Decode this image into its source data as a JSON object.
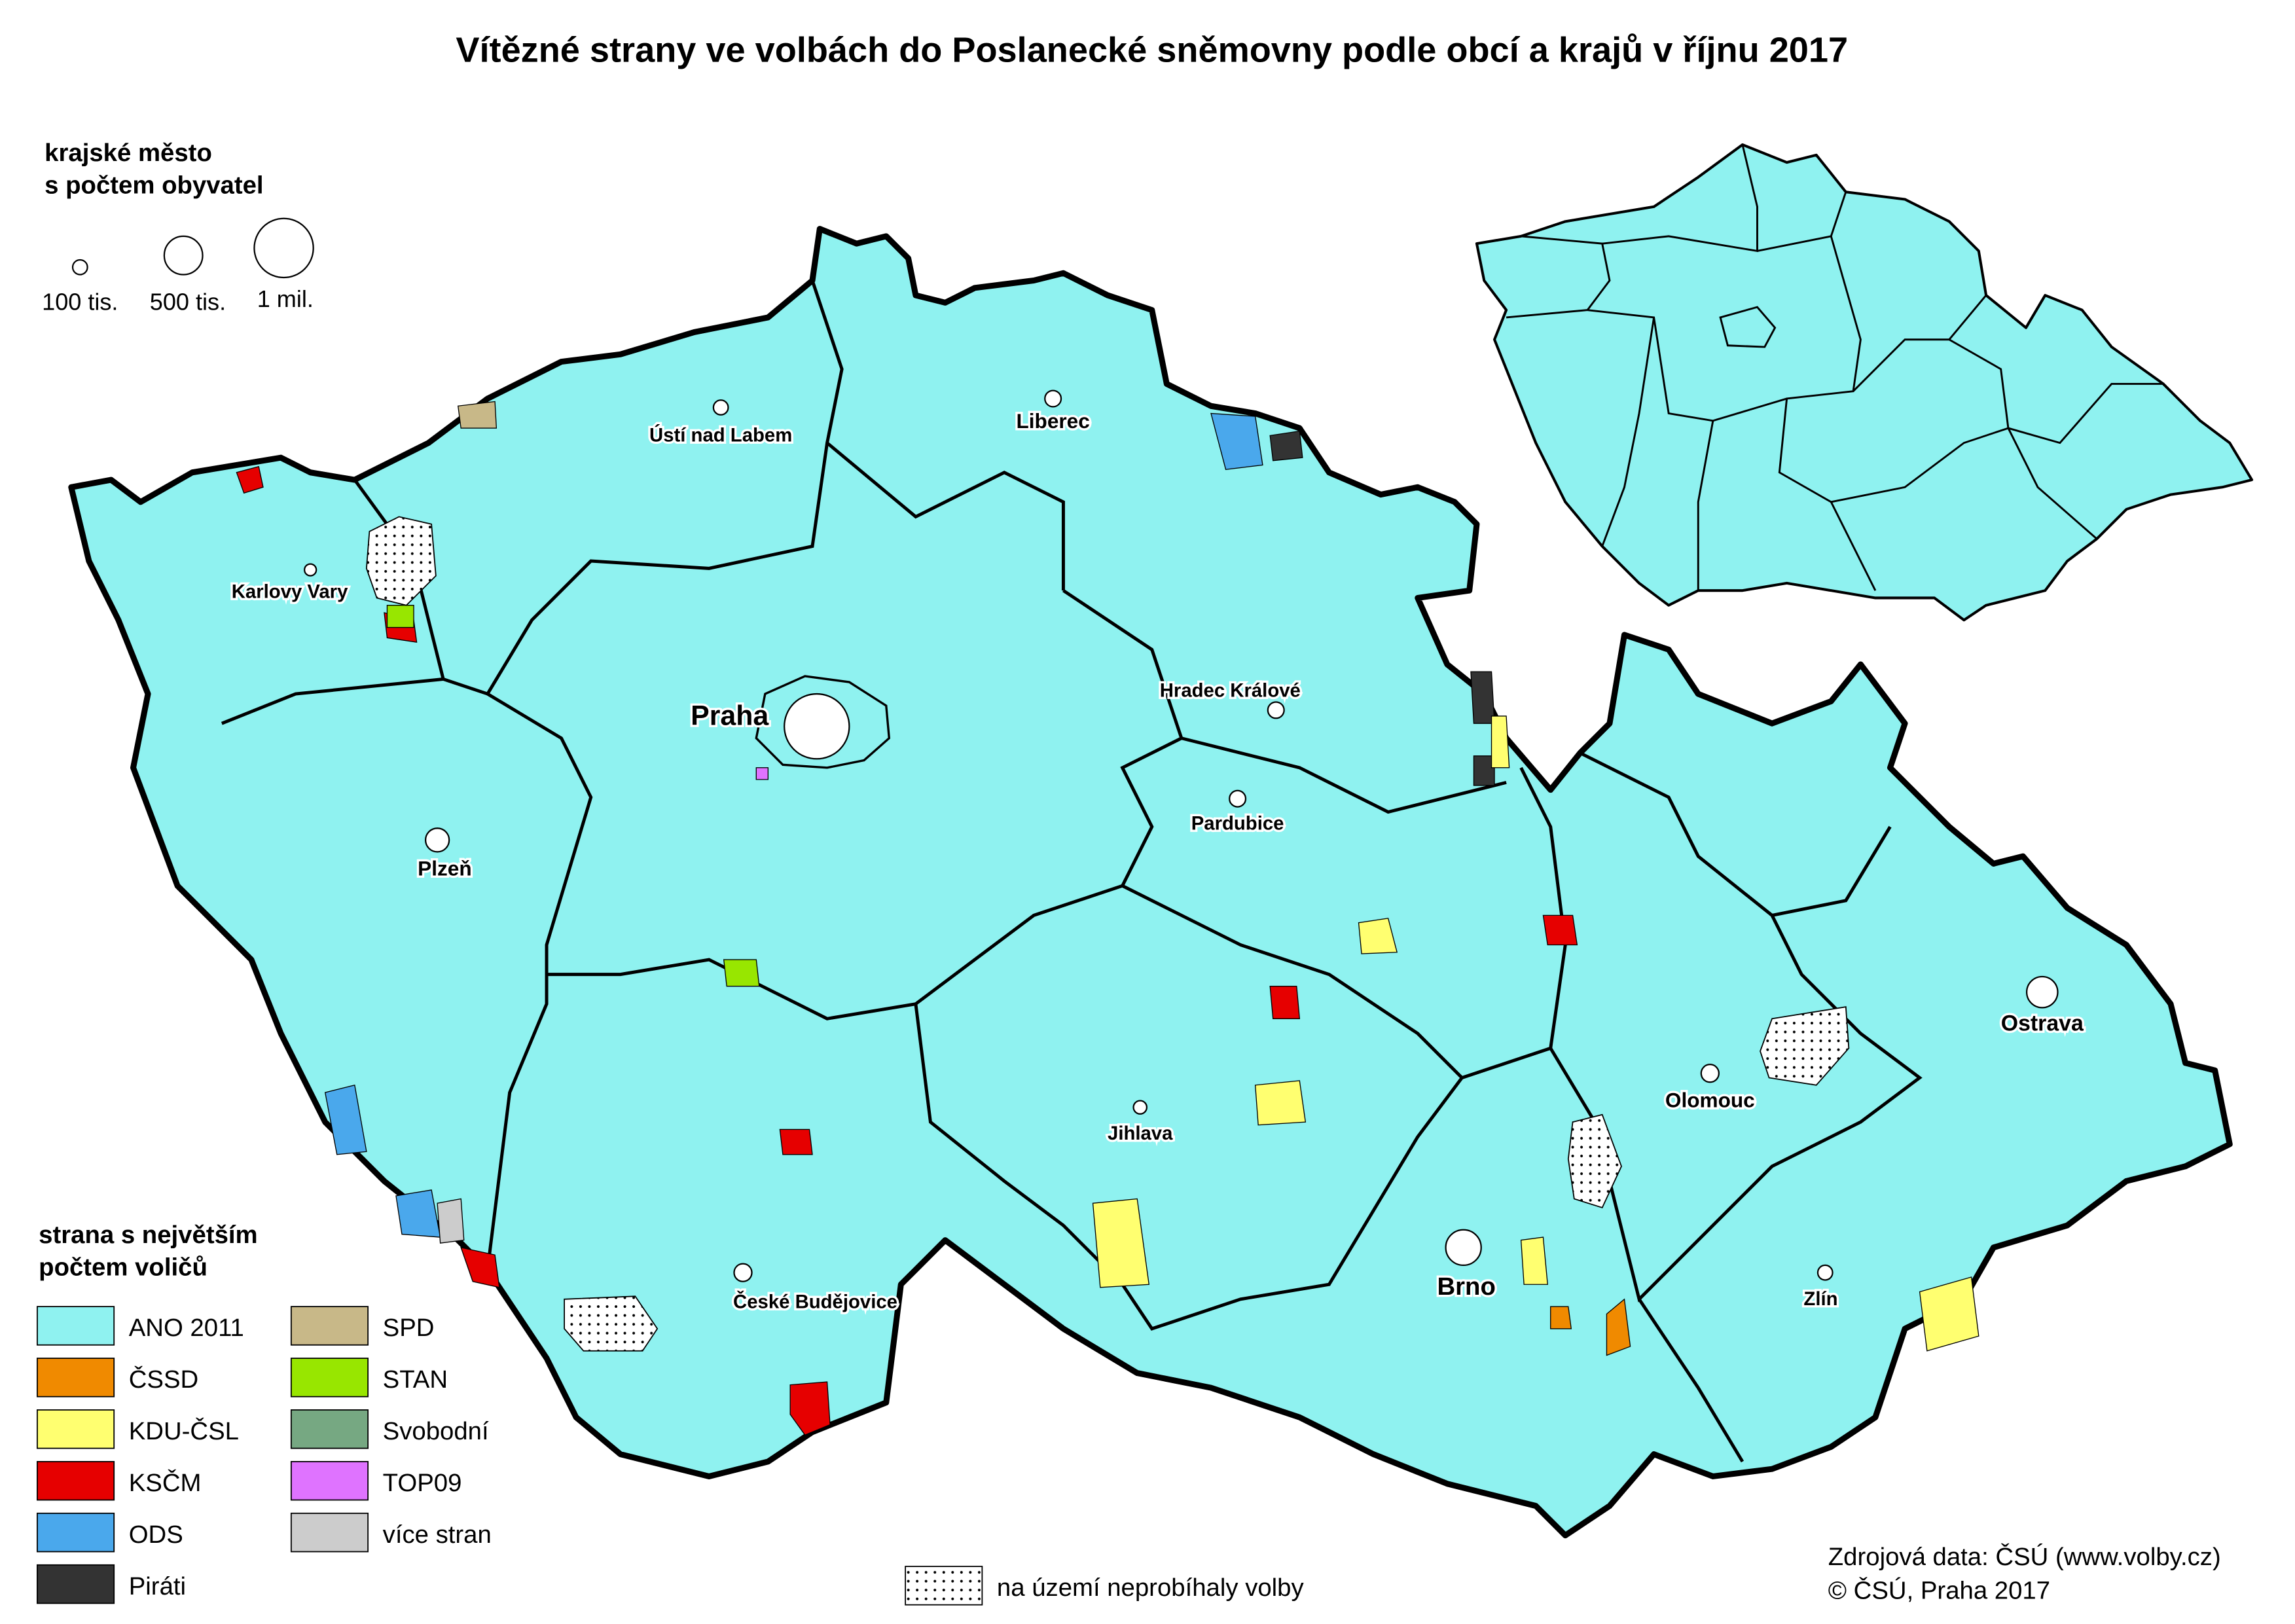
{
  "title": "Vítězné strany ve volbách do Poslanecké sněmovny podle obcí a krajů v říjnu 2017",
  "city_size_legend": {
    "title_line1": "krajské město",
    "title_line2": "s počtem obyvatel",
    "sizes": [
      {
        "label": "100 tis.",
        "population": 100000
      },
      {
        "label": "500 tis.",
        "population": 500000
      },
      {
        "label": "1 mil.",
        "population": 1000000
      }
    ]
  },
  "cities": [
    {
      "name": "Praha"
    },
    {
      "name": "Ústí nad Labem"
    },
    {
      "name": "Liberec"
    },
    {
      "name": "Karlovy Vary"
    },
    {
      "name": "Hradec Králové"
    },
    {
      "name": "Pardubice"
    },
    {
      "name": "Plzeň"
    },
    {
      "name": "Jihlava"
    },
    {
      "name": "Brno"
    },
    {
      "name": "Olomouc"
    },
    {
      "name": "Ostrava"
    },
    {
      "name": "Zlín"
    },
    {
      "name": "České Budějovice"
    }
  ],
  "party_legend": {
    "title_line1": "strana s největším",
    "title_line2": "počtem voličů",
    "items": [
      {
        "label": "ANO 2011",
        "color": "#8ff2f0"
      },
      {
        "label": "ČSSD",
        "color": "#f08a00"
      },
      {
        "label": "KDU-ČSL",
        "color": "#ffff70"
      },
      {
        "label": "KSČM",
        "color": "#e60000"
      },
      {
        "label": "ODS",
        "color": "#4aa8ec"
      },
      {
        "label": "Piráti",
        "color": "#333333"
      },
      {
        "label": "SPD",
        "color": "#c8b888"
      },
      {
        "label": "STAN",
        "color": "#98e600"
      },
      {
        "label": "Svobodní",
        "color": "#76a882"
      },
      {
        "label": "TOP09",
        "color": "#df73ff"
      },
      {
        "label": "více stran",
        "color": "#cccccc"
      }
    ]
  },
  "no_election_label": "na území neprobíhaly volby",
  "source": {
    "line1": "Zdrojová data: ČSÚ (www.volby.cz)",
    "line2": "© ČSÚ, Praha 2017"
  }
}
